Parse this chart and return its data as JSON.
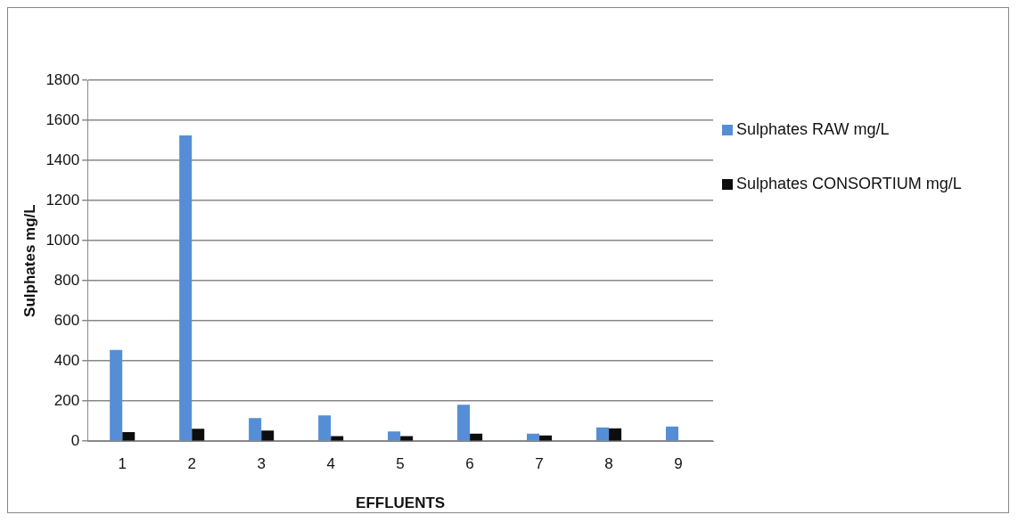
{
  "chart_data": {
    "type": "bar",
    "xlabel": "EFFLUENTS",
    "ylabel": "Sulphates mg/L",
    "categories": [
      "1",
      "2",
      "3",
      "4",
      "5",
      "6",
      "7",
      "8",
      "9"
    ],
    "series": [
      {
        "name": "Sulphates RAW mg/L",
        "color": "#558ed5",
        "values": [
          455,
          1525,
          115,
          129,
          49,
          182,
          38,
          69,
          73
        ]
      },
      {
        "name": "Sulphates CONSORTIUM mg/L",
        "color": "#0d0d0d",
        "values": [
          45,
          62,
          53,
          25,
          25,
          38,
          29,
          64,
          null
        ]
      }
    ],
    "ylim": [
      0,
      1800
    ],
    "yticks": [
      0,
      200,
      400,
      600,
      800,
      1000,
      1200,
      1400,
      1600,
      1800
    ],
    "grid": "y",
    "legend": "right"
  }
}
